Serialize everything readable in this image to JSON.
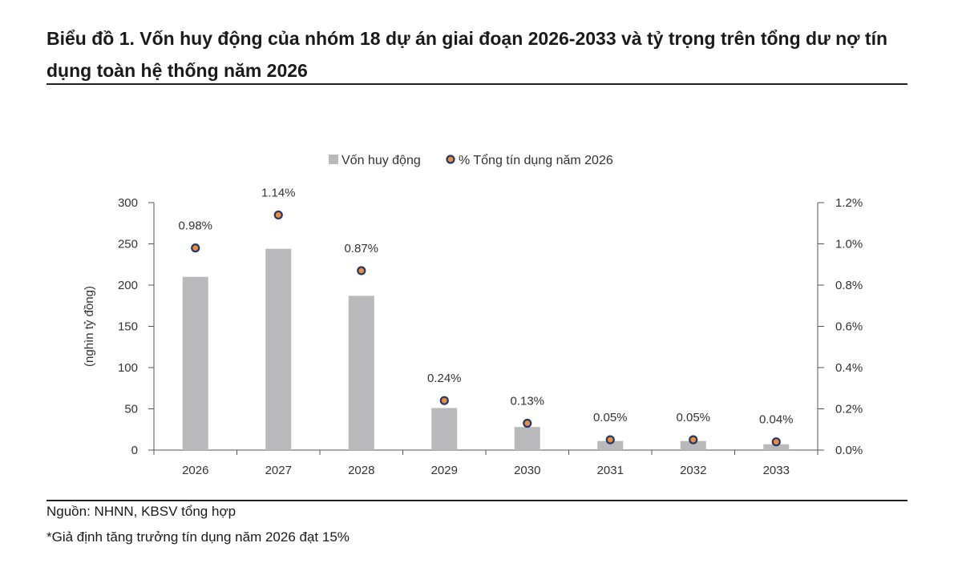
{
  "page": {
    "title": "Biểu đồ 1. Vốn huy động của nhóm 18 dự án giai đoạn 2026-2033 và tỷ trọng trên tổng dư nợ tín dụng toàn hệ thống năm 2026",
    "source": "Nguồn: NHNN, KBSV tổng hợp",
    "note": "*Giả định tăng trưởng tín dụng năm 2026 đạt 15%"
  },
  "chart_data": {
    "type": "bar",
    "categories": [
      "2026",
      "2027",
      "2028",
      "2029",
      "2030",
      "2031",
      "2032",
      "2033"
    ],
    "series": [
      {
        "name": "Vốn huy động",
        "type": "bar",
        "axis": "left",
        "color": "#b9b8bb",
        "values": [
          210,
          244,
          187,
          51,
          28,
          11,
          11,
          7
        ]
      },
      {
        "name": "% Tổng tín dụng năm 2026",
        "type": "scatter",
        "axis": "right",
        "color": "#ef8a3c",
        "edge_color": "#1f3a68",
        "values": [
          0.98,
          1.14,
          0.87,
          0.24,
          0.13,
          0.05,
          0.05,
          0.04
        ],
        "labels": [
          "0.98%",
          "1.14%",
          "0.87%",
          "0.24%",
          "0.13%",
          "0.05%",
          "0.05%",
          "0.04%"
        ]
      }
    ],
    "ylabel": "(nghìn tỷ đồng)",
    "ylim": [
      0,
      300
    ],
    "yticks": [
      "0",
      "50",
      "100",
      "150",
      "200",
      "250",
      "300"
    ],
    "y2lim": [
      0,
      1.2
    ],
    "y2ticks": [
      "0.0%",
      "0.2%",
      "0.4%",
      "0.6%",
      "0.8%",
      "1.0%",
      "1.2%"
    ],
    "legend_position": "top-center",
    "grid": false
  }
}
